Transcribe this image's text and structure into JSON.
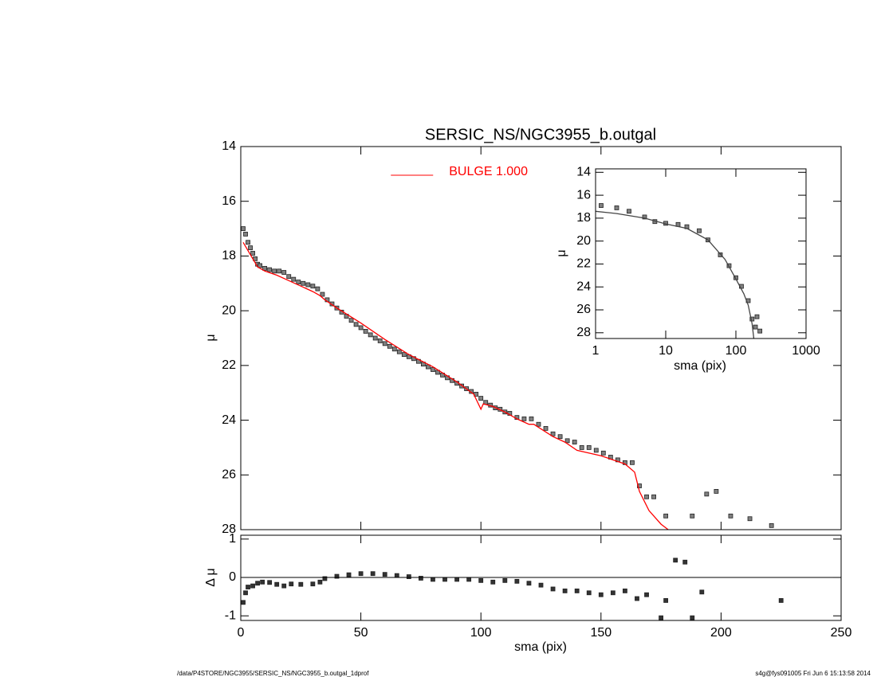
{
  "chart_data": [
    {
      "type": "scatter",
      "title": "SERSIC_NS/NGC3955_b.outgal",
      "ylabel": "μ",
      "xlim": [
        0,
        250
      ],
      "ylim": [
        14,
        28
      ],
      "invert_y": true,
      "yticks": [
        14,
        16,
        18,
        20,
        22,
        24,
        26,
        28
      ],
      "legend": "upper center",
      "series": [
        {
          "style": "square",
          "color": "#808080",
          "x": [
            1,
            2,
            3,
            4,
            5,
            6,
            7,
            8,
            10,
            12,
            14,
            16,
            18,
            20,
            22,
            24,
            26,
            28,
            30,
            32,
            34,
            36,
            38,
            40,
            42,
            44,
            46,
            48,
            50,
            52,
            54,
            56,
            58,
            60,
            62,
            64,
            66,
            68,
            70,
            72,
            74,
            76,
            78,
            80,
            82,
            84,
            86,
            88,
            90,
            92,
            94,
            96,
            98,
            100,
            102,
            104,
            106,
            108,
            110,
            112,
            115,
            118,
            121,
            124,
            127,
            130,
            133,
            136,
            139,
            142,
            145,
            148,
            151,
            154,
            157,
            160,
            163,
            166,
            169,
            172,
            177,
            188,
            194,
            198,
            204,
            212,
            221
          ],
          "values": [
            17.0,
            17.2,
            17.5,
            17.7,
            17.9,
            18.1,
            18.3,
            18.35,
            18.45,
            18.5,
            18.55,
            18.55,
            18.6,
            18.75,
            18.85,
            18.95,
            19.0,
            19.05,
            19.1,
            19.2,
            19.4,
            19.6,
            19.75,
            19.9,
            20.05,
            20.2,
            20.35,
            20.5,
            20.62,
            20.75,
            20.88,
            21.0,
            21.1,
            21.2,
            21.3,
            21.4,
            21.5,
            21.6,
            21.68,
            21.75,
            21.85,
            21.95,
            22.05,
            22.15,
            22.25,
            22.35,
            22.45,
            22.55,
            22.65,
            22.75,
            22.85,
            22.95,
            23.05,
            23.2,
            23.35,
            23.45,
            23.55,
            23.6,
            23.7,
            23.75,
            23.9,
            23.95,
            23.95,
            24.15,
            24.3,
            24.5,
            24.6,
            24.75,
            24.8,
            25.0,
            25.0,
            25.1,
            25.2,
            25.35,
            25.45,
            25.55,
            25.55,
            26.4,
            26.8,
            26.8,
            27.5,
            27.5,
            26.7,
            26.6,
            27.5,
            27.6,
            27.85
          ]
        },
        {
          "name": "BULGE  1.000",
          "style": "line",
          "color": "#ff0000",
          "x": [
            1,
            3,
            5,
            7,
            10,
            15,
            20,
            25,
            30,
            33,
            35,
            40,
            50,
            60,
            70,
            80,
            90,
            97,
            100,
            101,
            105,
            110,
            115,
            120,
            122,
            130,
            135,
            140,
            150,
            160,
            164,
            166,
            170,
            175,
            178
          ],
          "values": [
            17.5,
            17.8,
            18.1,
            18.4,
            18.55,
            18.7,
            18.9,
            19.1,
            19.3,
            19.45,
            19.6,
            19.9,
            20.45,
            21.05,
            21.6,
            22.05,
            22.6,
            23.05,
            23.6,
            23.4,
            23.5,
            23.7,
            23.95,
            24.15,
            24.15,
            24.6,
            24.8,
            25.1,
            25.3,
            25.6,
            25.9,
            26.6,
            27.3,
            27.8,
            28.0
          ]
        }
      ]
    },
    {
      "type": "scatter",
      "xlabel": "sma (pix)",
      "ylabel": "Δ μ",
      "xlim": [
        0,
        250
      ],
      "xticks": [
        0,
        50,
        100,
        150,
        200,
        250
      ],
      "ylim": [
        -1.12,
        1.1
      ],
      "yticks": [
        -1,
        0,
        1
      ],
      "reference_line": 0,
      "series": [
        {
          "style": "square",
          "color": "#333333",
          "x": [
            1,
            2,
            3,
            5,
            7,
            9,
            12,
            15,
            18,
            21,
            25,
            30,
            33,
            35,
            40,
            45,
            50,
            55,
            60,
            65,
            70,
            75,
            80,
            85,
            90,
            95,
            100,
            105,
            110,
            115,
            120,
            125,
            130,
            135,
            140,
            145,
            150,
            155,
            160,
            165,
            169,
            175,
            177,
            181,
            185,
            188,
            192,
            225
          ],
          "values": [
            -0.65,
            -0.4,
            -0.25,
            -0.22,
            -0.15,
            -0.12,
            -0.13,
            -0.18,
            -0.22,
            -0.17,
            -0.18,
            -0.17,
            -0.12,
            -0.03,
            0.03,
            0.07,
            0.1,
            0.1,
            0.08,
            0.05,
            0.02,
            -0.02,
            -0.05,
            -0.05,
            -0.05,
            -0.05,
            -0.08,
            -0.12,
            -0.08,
            -0.1,
            -0.15,
            -0.2,
            -0.3,
            -0.35,
            -0.35,
            -0.4,
            -0.45,
            -0.4,
            -0.35,
            -0.55,
            -0.45,
            -1.05,
            -0.6,
            0.45,
            0.4,
            -1.05,
            -0.38,
            -0.6
          ]
        }
      ]
    },
    {
      "type": "scatter",
      "xlabel": "sma (pix)",
      "ylabel": "μ",
      "xlog": true,
      "xlim": [
        1,
        1000
      ],
      "xticks": [
        1,
        10,
        100,
        1000
      ],
      "ylim": [
        13.7,
        28.5
      ],
      "invert_y": true,
      "yticks": [
        14,
        16,
        18,
        20,
        22,
        24,
        26,
        28
      ],
      "series": [
        {
          "style": "square",
          "color": "#808080",
          "x": [
            1.2,
            2,
            3,
            5,
            7,
            10,
            15,
            20,
            30,
            40,
            60,
            80,
            100,
            120,
            150,
            170,
            190,
            200,
            220
          ],
          "values": [
            16.9,
            17.1,
            17.4,
            17.9,
            18.3,
            18.45,
            18.55,
            18.75,
            19.1,
            19.9,
            21.2,
            22.15,
            23.2,
            23.95,
            25.2,
            26.8,
            27.5,
            26.6,
            27.85
          ]
        },
        {
          "style": "line",
          "color": "#444444",
          "x": [
            1,
            2,
            5,
            10,
            20,
            40,
            70,
            100,
            130,
            150,
            170,
            180
          ],
          "values": [
            17.4,
            17.6,
            18.0,
            18.5,
            18.9,
            19.9,
            21.6,
            23.3,
            24.6,
            25.6,
            27.2,
            28.5
          ]
        }
      ]
    }
  ],
  "footer": {
    "left": "/data/P4STORE/NGC3955/SERSIC_NS/NGC3955_b.outgal_1dprof",
    "right": "s4g@fys091005  Fri Jun  6 15:13:58 2014"
  }
}
